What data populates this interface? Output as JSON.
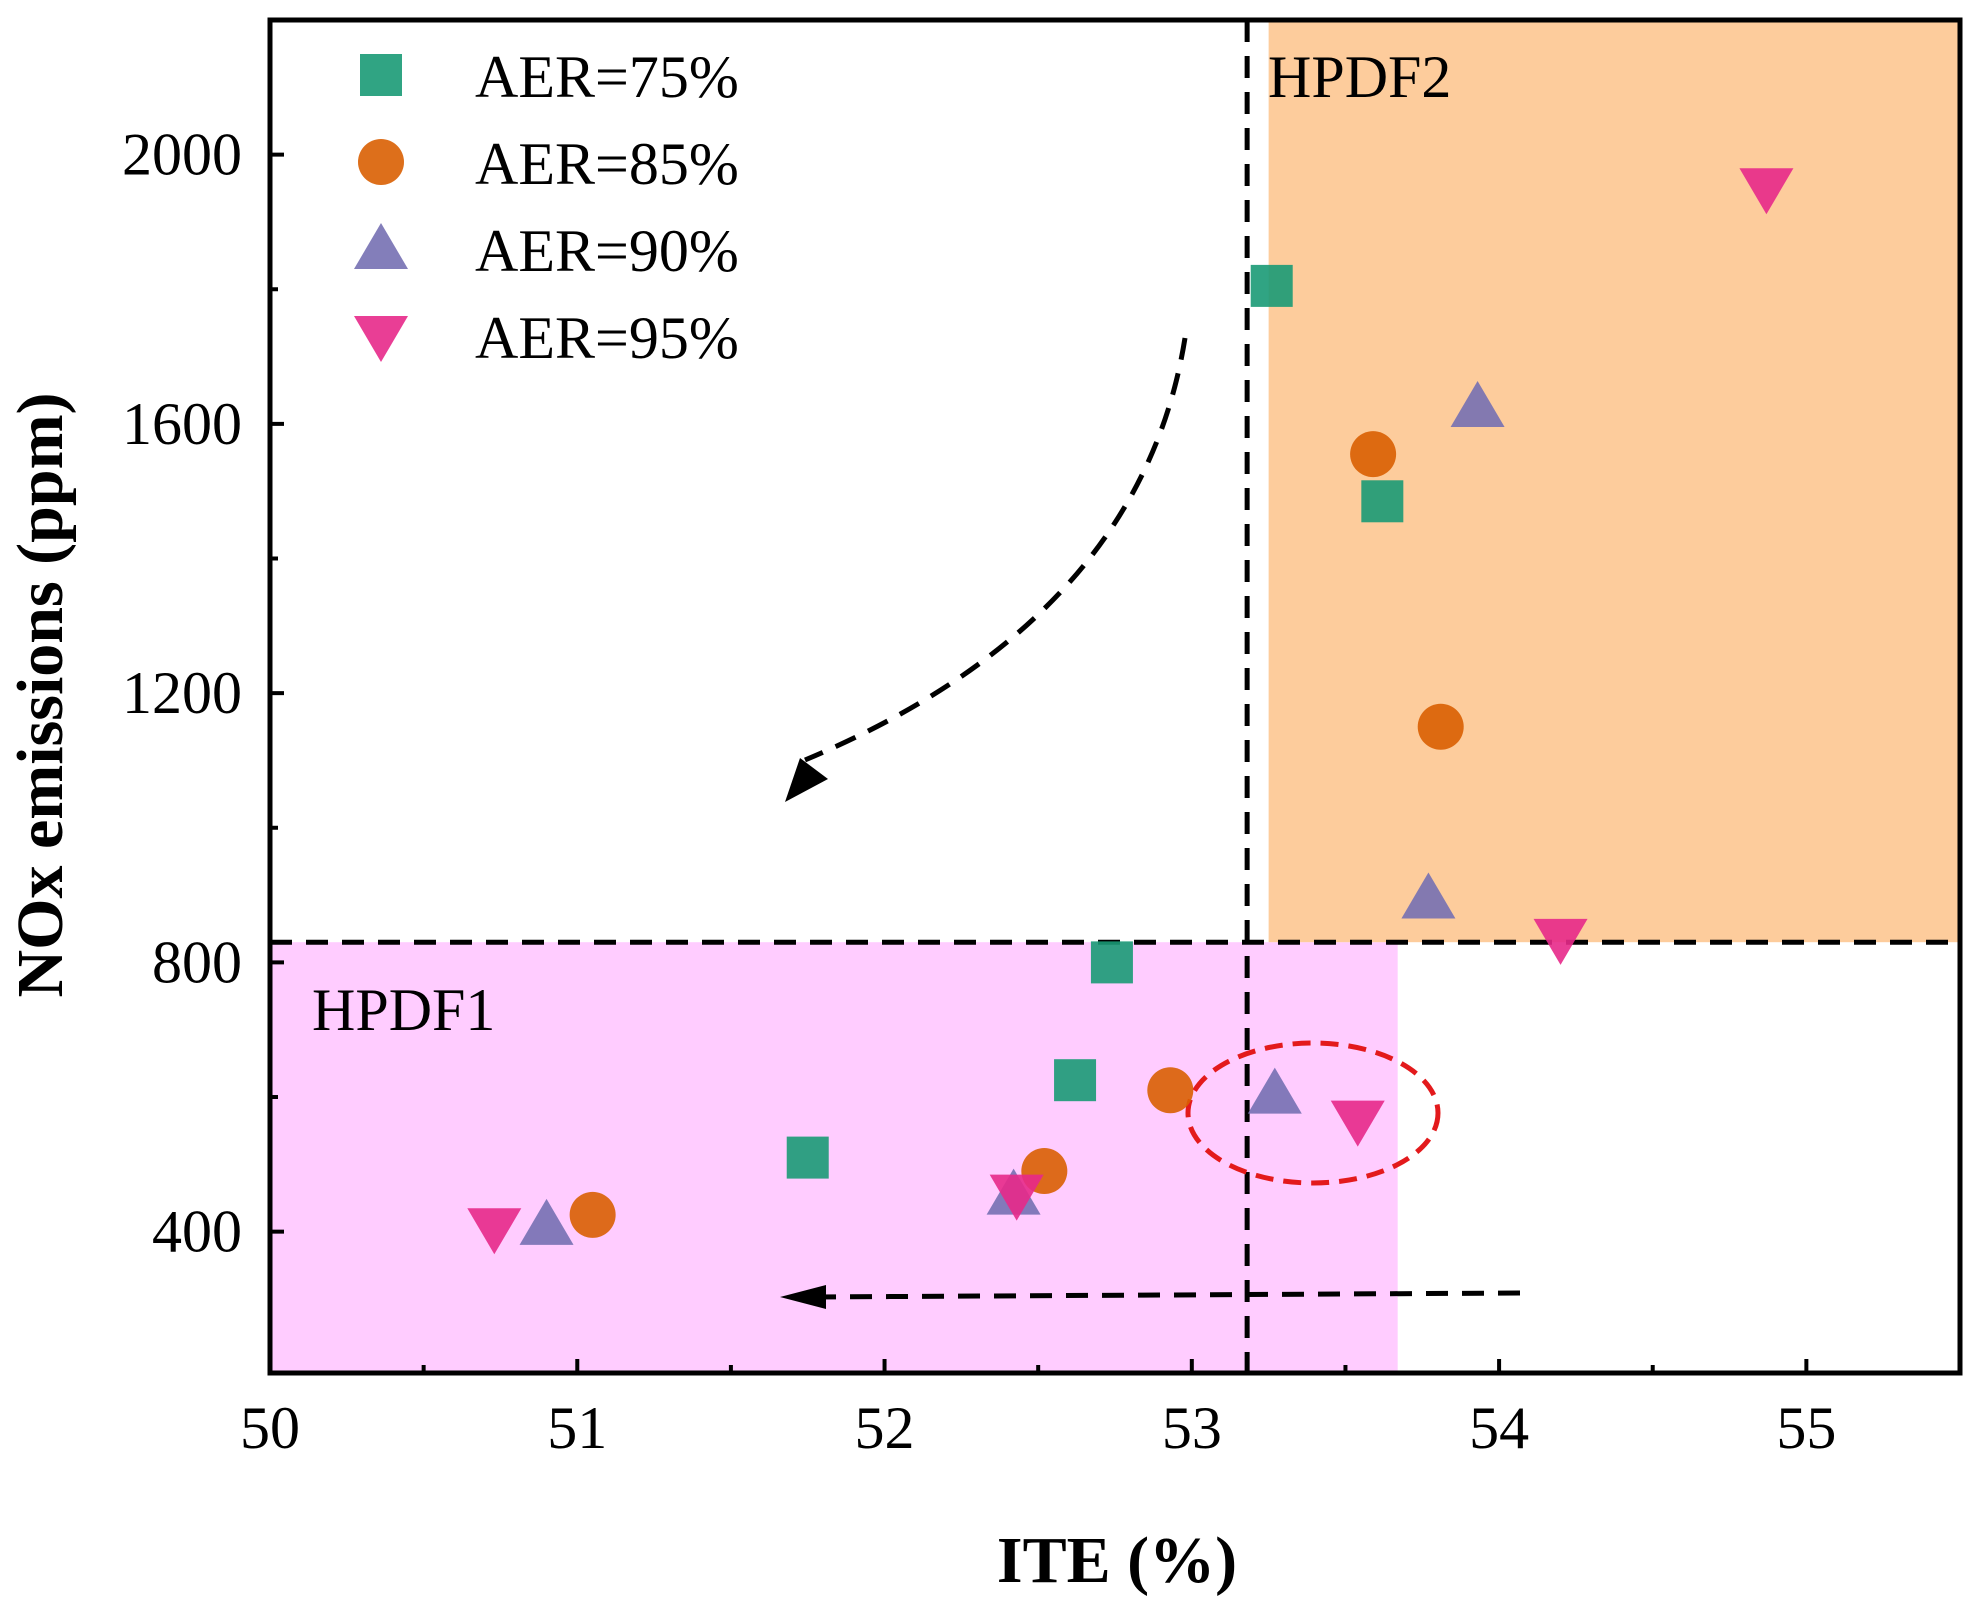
{
  "chart_data": {
    "type": "scatter",
    "xlabel": "ITE (%)",
    "ylabel": "NOx emissions (ppm)",
    "xlim": [
      50,
      55.5
    ],
    "ylim": [
      190,
      2200
    ],
    "x_ticks": [
      50,
      51,
      52,
      53,
      54,
      55
    ],
    "y_ticks": [
      400,
      800,
      1200,
      1600,
      2000
    ],
    "grid": false,
    "legend_position": "top-left",
    "series": [
      {
        "name": "AER=75%",
        "marker": "square",
        "color": "#1a9a75",
        "points": [
          [
            51.75,
            510
          ],
          [
            52.62,
            625
          ],
          [
            52.74,
            800
          ],
          [
            53.62,
            1485
          ],
          [
            53.26,
            1805
          ]
        ]
      },
      {
        "name": "AER=85%",
        "marker": "circle",
        "color": "#d95f02",
        "points": [
          [
            51.05,
            425
          ],
          [
            52.52,
            490
          ],
          [
            52.93,
            610
          ],
          [
            53.59,
            1555
          ],
          [
            53.81,
            1150
          ]
        ]
      },
      {
        "name": "AER=90%",
        "marker": "triangle-up",
        "color": "#7570b3",
        "points": [
          [
            50.9,
            410
          ],
          [
            52.42,
            455
          ],
          [
            53.27,
            605
          ],
          [
            53.77,
            895
          ],
          [
            53.93,
            1625
          ]
        ]
      },
      {
        "name": "AER=95%",
        "marker": "triangle-down",
        "color": "#e7298a",
        "points": [
          [
            50.73,
            405
          ],
          [
            52.43,
            455
          ],
          [
            53.54,
            565
          ],
          [
            54.2,
            835
          ],
          [
            54.87,
            1950
          ]
        ]
      }
    ],
    "regions": [
      {
        "label": "HPDF1",
        "color": "#ffccff",
        "x_range": [
          50,
          53.67
        ],
        "y_range": [
          190,
          830
        ]
      },
      {
        "label": "HPDF2",
        "color": "#fdcc9c",
        "x_range": [
          53.25,
          55.5
        ],
        "y_range": [
          830,
          2200
        ]
      }
    ],
    "reference_lines": {
      "x": 53.18,
      "y": 830
    }
  }
}
